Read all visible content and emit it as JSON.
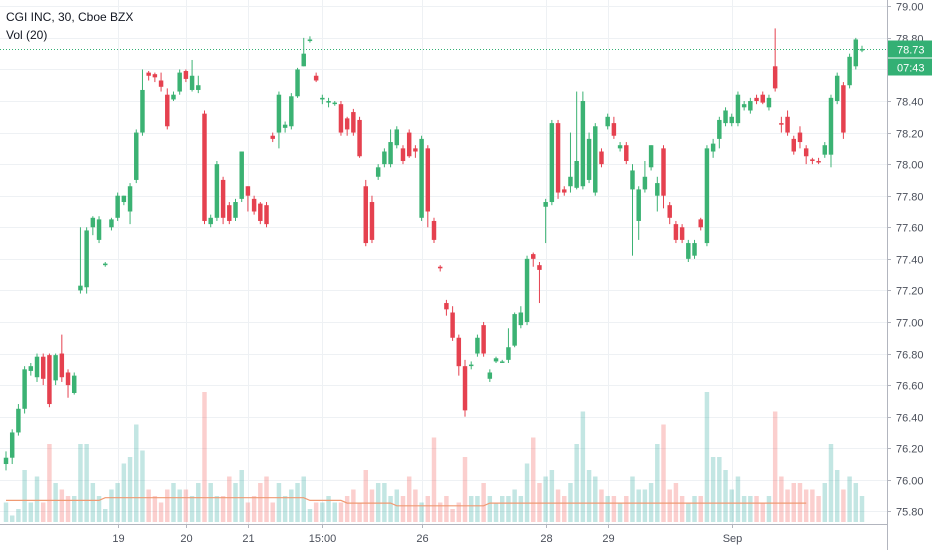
{
  "header": {
    "symbol_line": "CGI INC, 30, Cboe BZX",
    "volume_line": "Vol (20)"
  },
  "price_badges": {
    "last_price": "78.73",
    "countdown": "07:43"
  },
  "colors": {
    "up": "#26a69a",
    "down": "#ef5350",
    "up_candle": "#3bb273",
    "down_candle": "#e5414f",
    "volume_ma": "#f09a73",
    "badge": "#33b074",
    "grid": "#eef1f4"
  },
  "chart_data": {
    "type": "candlestick",
    "ylim": [
      75.72,
      79.04
    ],
    "y_ticks": [
      "79.00",
      "78.80",
      "78.60",
      "78.40",
      "78.20",
      "78.00",
      "77.80",
      "77.60",
      "77.40",
      "77.20",
      "77.00",
      "76.80",
      "76.60",
      "76.40",
      "76.20",
      "76.00",
      "75.80"
    ],
    "x_tick_labels": [
      "19",
      "20",
      "21",
      "15:00",
      "26",
      "28",
      "29",
      "Sep"
    ],
    "x_tick_bars": [
      18,
      29,
      39,
      51,
      67,
      87,
      97,
      117
    ],
    "last_price": 78.73,
    "bars": [
      [
        76.14,
        76.1,
        76.18,
        76.06,
        "u",
        3
      ],
      [
        76.3,
        76.14,
        76.32,
        76.1,
        "u",
        1
      ],
      [
        76.45,
        76.3,
        76.48,
        76.28,
        "u",
        2
      ],
      [
        76.7,
        76.45,
        76.72,
        76.42,
        "u",
        8
      ],
      [
        76.72,
        76.69,
        76.74,
        76.66,
        "u",
        3
      ],
      [
        76.78,
        76.65,
        76.8,
        76.62,
        "u",
        7
      ],
      [
        76.64,
        76.78,
        76.8,
        76.6,
        "d",
        3
      ],
      [
        76.48,
        76.79,
        76.8,
        76.46,
        "d",
        12
      ],
      [
        76.79,
        76.63,
        76.8,
        76.6,
        "u",
        6
      ],
      [
        76.8,
        76.65,
        76.92,
        76.62,
        "d",
        5
      ],
      [
        76.6,
        76.68,
        76.7,
        76.52,
        "d",
        4
      ],
      [
        76.66,
        76.55,
        76.68,
        76.54,
        "u",
        4
      ],
      [
        77.23,
        77.2,
        77.6,
        77.18,
        "u",
        12
      ],
      [
        77.58,
        77.22,
        77.6,
        77.18,
        "u",
        12
      ],
      [
        77.66,
        77.6,
        77.67,
        77.55,
        "u",
        6
      ],
      [
        77.52,
        77.65,
        77.67,
        77.5,
        "u",
        4
      ],
      [
        77.37,
        77.36,
        77.38,
        77.35,
        "u",
        2
      ],
      [
        77.65,
        77.6,
        77.66,
        77.58,
        "u",
        5
      ],
      [
        77.8,
        77.66,
        77.82,
        77.64,
        "u",
        6
      ],
      [
        77.8,
        77.76,
        77.8,
        77.74,
        "u",
        9
      ],
      [
        77.86,
        77.7,
        77.88,
        77.62,
        "u",
        10
      ],
      [
        78.2,
        77.9,
        78.22,
        77.88,
        "u",
        15
      ],
      [
        78.47,
        78.2,
        78.6,
        78.18,
        "u",
        11
      ],
      [
        78.56,
        78.58,
        78.59,
        78.53,
        "d",
        5
      ],
      [
        78.55,
        78.57,
        78.58,
        78.52,
        "d",
        4
      ],
      [
        78.53,
        78.49,
        78.58,
        78.46,
        "d",
        3
      ],
      [
        78.44,
        78.24,
        78.48,
        78.22,
        "d",
        5
      ],
      [
        78.44,
        78.41,
        78.46,
        78.4,
        "u",
        6
      ],
      [
        78.58,
        78.46,
        78.6,
        78.44,
        "u",
        5
      ],
      [
        78.54,
        78.59,
        78.6,
        78.52,
        "d",
        5
      ],
      [
        78.47,
        78.56,
        78.66,
        78.46,
        "u",
        4
      ],
      [
        78.5,
        78.47,
        78.56,
        78.45,
        "u",
        6
      ],
      [
        78.32,
        77.64,
        78.34,
        77.62,
        "d",
        20
      ],
      [
        77.66,
        77.62,
        77.68,
        77.6,
        "u",
        6
      ],
      [
        78.0,
        77.66,
        78.02,
        77.64,
        "u",
        4
      ],
      [
        77.9,
        77.66,
        77.92,
        77.62,
        "d",
        4
      ],
      [
        77.64,
        77.74,
        77.76,
        77.62,
        "d",
        7
      ],
      [
        77.76,
        77.66,
        77.78,
        77.64,
        "u",
        6
      ],
      [
        78.08,
        77.78,
        78.08,
        77.76,
        "u",
        8
      ],
      [
        77.86,
        77.8,
        77.86,
        77.7,
        "d",
        3
      ],
      [
        77.78,
        77.7,
        77.8,
        77.68,
        "d",
        4
      ],
      [
        77.75,
        77.64,
        77.76,
        77.62,
        "d",
        6
      ],
      [
        77.74,
        77.62,
        77.76,
        77.6,
        "d",
        7
      ],
      [
        78.18,
        78.16,
        78.2,
        78.14,
        "d",
        3
      ],
      [
        78.44,
        78.2,
        78.46,
        78.1,
        "u",
        6
      ],
      [
        78.25,
        78.23,
        78.27,
        78.2,
        "u",
        4
      ],
      [
        78.43,
        78.24,
        78.45,
        78.22,
        "u",
        5
      ],
      [
        78.6,
        78.43,
        78.61,
        78.42,
        "u",
        6
      ],
      [
        78.7,
        78.62,
        78.8,
        78.62,
        "u",
        7
      ],
      [
        78.79,
        78.78,
        78.81,
        78.77,
        "u",
        2
      ],
      [
        78.53,
        78.56,
        78.58,
        78.52,
        "d",
        3
      ],
      [
        78.42,
        78.41,
        78.44,
        78.38,
        "u",
        3
      ],
      [
        78.4,
        78.39,
        78.42,
        78.36,
        "u",
        4
      ],
      [
        78.39,
        78.39,
        78.4,
        78.37,
        "u",
        3
      ],
      [
        78.38,
        78.2,
        78.4,
        78.18,
        "d",
        3
      ],
      [
        78.29,
        78.22,
        78.3,
        78.18,
        "d",
        4
      ],
      [
        78.33,
        78.2,
        78.35,
        78.18,
        "d",
        5
      ],
      [
        78.28,
        78.05,
        78.3,
        78.04,
        "d",
        3
      ],
      [
        77.86,
        77.5,
        77.9,
        77.48,
        "d",
        8
      ],
      [
        77.76,
        77.52,
        77.8,
        77.5,
        "d",
        5
      ],
      [
        77.98,
        77.92,
        78.0,
        77.9,
        "u",
        6
      ],
      [
        78.08,
        78.0,
        78.1,
        77.98,
        "u",
        6
      ],
      [
        78.14,
        78.0,
        78.22,
        77.98,
        "u",
        4
      ],
      [
        78.22,
        78.12,
        78.24,
        78.1,
        "u",
        5
      ],
      [
        78.1,
        78.02,
        78.12,
        78.0,
        "d",
        4
      ],
      [
        78.2,
        78.05,
        78.22,
        78.04,
        "d",
        7
      ],
      [
        78.08,
        78.1,
        78.12,
        78.04,
        "d",
        5
      ],
      [
        78.16,
        77.66,
        78.18,
        77.64,
        "u",
        3
      ],
      [
        78.1,
        77.7,
        78.12,
        77.6,
        "d",
        4
      ],
      [
        77.64,
        77.52,
        77.66,
        77.5,
        "d",
        13
      ],
      [
        77.34,
        77.35,
        77.36,
        77.32,
        "d",
        3
      ],
      [
        77.08,
        77.12,
        77.14,
        77.04,
        "d",
        4
      ],
      [
        77.06,
        76.9,
        77.1,
        76.88,
        "d",
        2
      ],
      [
        76.9,
        76.72,
        76.92,
        76.66,
        "d",
        3
      ],
      [
        76.72,
        76.44,
        76.76,
        76.4,
        "d",
        10
      ],
      [
        76.73,
        76.73,
        76.75,
        76.7,
        "u",
        4
      ],
      [
        76.9,
        76.8,
        76.92,
        76.78,
        "u",
        4
      ],
      [
        76.98,
        76.8,
        77.0,
        76.78,
        "d",
        6
      ],
      [
        76.68,
        76.64,
        76.7,
        76.62,
        "u",
        4
      ],
      [
        76.77,
        76.75,
        76.78,
        76.74,
        "u",
        3
      ],
      [
        76.75,
        76.75,
        76.76,
        76.74,
        "u",
        4
      ],
      [
        76.84,
        76.76,
        76.96,
        76.74,
        "u",
        4
      ],
      [
        77.05,
        76.85,
        77.06,
        76.84,
        "u",
        5
      ],
      [
        77.06,
        76.98,
        77.1,
        76.96,
        "u",
        4
      ],
      [
        77.4,
        77.0,
        77.42,
        76.98,
        "u",
        9
      ],
      [
        77.43,
        77.4,
        77.44,
        77.35,
        "d",
        13
      ],
      [
        77.36,
        77.33,
        77.38,
        77.12,
        "d",
        6
      ],
      [
        77.76,
        77.73,
        77.78,
        77.5,
        "u",
        7
      ],
      [
        78.26,
        77.76,
        78.28,
        77.74,
        "u",
        8
      ],
      [
        78.26,
        77.82,
        78.28,
        77.78,
        "d",
        5
      ],
      [
        77.84,
        77.82,
        77.86,
        77.8,
        "d",
        4
      ],
      [
        77.92,
        77.86,
        78.2,
        77.82,
        "u",
        6
      ],
      [
        78.02,
        77.85,
        78.46,
        77.84,
        "u",
        12
      ],
      [
        78.4,
        77.86,
        78.46,
        77.84,
        "u",
        17
      ],
      [
        78.16,
        77.9,
        78.2,
        77.88,
        "u",
        8
      ],
      [
        78.24,
        77.82,
        78.26,
        77.8,
        "u",
        7
      ],
      [
        78.08,
        78.0,
        78.1,
        77.98,
        "d",
        5
      ],
      [
        78.3,
        78.24,
        78.32,
        78.22,
        "u",
        4
      ],
      [
        78.26,
        78.18,
        78.3,
        78.16,
        "d",
        4
      ],
      [
        78.12,
        78.1,
        78.14,
        78.08,
        "u",
        3
      ],
      [
        78.12,
        78.02,
        78.14,
        78.0,
        "d",
        4
      ],
      [
        77.96,
        77.84,
        78.0,
        77.42,
        "u",
        7
      ],
      [
        77.84,
        77.64,
        77.86,
        77.52,
        "u",
        5
      ],
      [
        77.92,
        77.84,
        78.02,
        77.82,
        "u",
        5
      ],
      [
        78.12,
        77.98,
        78.12,
        77.96,
        "u",
        6
      ],
      [
        77.88,
        77.8,
        77.92,
        77.7,
        "u",
        12
      ],
      [
        78.1,
        77.8,
        78.12,
        77.72,
        "d",
        15
      ],
      [
        77.74,
        77.66,
        77.76,
        77.62,
        "d",
        5
      ],
      [
        77.62,
        77.52,
        77.64,
        77.5,
        "d",
        6
      ],
      [
        77.6,
        77.52,
        77.62,
        77.5,
        "d",
        4
      ],
      [
        77.5,
        77.4,
        77.52,
        77.38,
        "u",
        3
      ],
      [
        77.42,
        77.5,
        77.52,
        77.4,
        "u",
        4
      ],
      [
        77.6,
        77.65,
        77.66,
        77.58,
        "d",
        4
      ],
      [
        78.1,
        77.5,
        78.12,
        77.48,
        "u",
        20
      ],
      [
        78.13,
        78.08,
        78.16,
        78.04,
        "u",
        10
      ],
      [
        78.28,
        78.16,
        78.3,
        78.1,
        "u",
        10
      ],
      [
        78.34,
        78.26,
        78.36,
        78.24,
        "u",
        8
      ],
      [
        78.3,
        78.26,
        78.32,
        78.24,
        "u",
        5
      ],
      [
        78.44,
        78.26,
        78.46,
        78.24,
        "u",
        7
      ],
      [
        78.38,
        78.36,
        78.4,
        78.34,
        "u",
        4
      ],
      [
        78.34,
        78.4,
        78.42,
        78.32,
        "u",
        4
      ],
      [
        78.42,
        78.4,
        78.44,
        78.38,
        "d",
        4
      ],
      [
        78.39,
        78.44,
        78.46,
        78.38,
        "d",
        3
      ],
      [
        78.42,
        78.36,
        78.44,
        78.34,
        "u",
        4
      ],
      [
        78.48,
        78.62,
        78.86,
        78.46,
        "d",
        17
      ],
      [
        78.25,
        78.26,
        78.3,
        78.2,
        "d",
        7
      ],
      [
        78.3,
        78.2,
        78.34,
        78.18,
        "d",
        5
      ],
      [
        78.16,
        78.08,
        78.18,
        78.06,
        "d",
        6
      ],
      [
        78.2,
        78.14,
        78.24,
        78.1,
        "d",
        6
      ],
      [
        78.1,
        78.05,
        78.12,
        78.0,
        "d",
        5
      ],
      [
        78.03,
        78.02,
        78.04,
        78.0,
        "d",
        5
      ],
      [
        78.02,
        78.02,
        78.04,
        78.0,
        "d",
        4
      ],
      [
        78.12,
        78.06,
        78.14,
        78.04,
        "u",
        6
      ],
      [
        78.42,
        78.06,
        78.44,
        77.98,
        "u",
        12
      ],
      [
        78.56,
        78.4,
        78.58,
        78.38,
        "u",
        8
      ],
      [
        78.5,
        78.2,
        78.52,
        78.16,
        "d",
        5
      ],
      [
        78.68,
        78.5,
        78.7,
        78.48,
        "u",
        7
      ],
      [
        78.79,
        78.62,
        78.8,
        78.6,
        "u",
        6
      ],
      [
        78.73,
        78.72,
        78.75,
        78.71,
        "u",
        4
      ]
    ],
    "volume_ma": [
      8,
      8,
      8,
      8,
      8,
      8,
      8,
      8,
      8,
      8,
      8,
      8,
      8,
      8,
      8,
      8,
      9,
      9,
      9,
      9,
      9,
      9,
      9,
      9,
      9,
      9,
      9,
      9,
      9,
      9,
      9,
      9,
      9,
      9,
      9,
      9,
      9,
      9,
      9,
      9,
      9,
      9,
      9,
      9,
      9,
      9,
      9,
      9,
      9,
      8,
      8,
      8,
      8,
      8,
      8,
      7,
      7,
      7,
      7,
      7,
      7,
      7,
      7,
      6,
      6,
      6,
      6,
      6,
      6,
      6,
      6,
      6,
      6,
      6,
      6,
      6,
      6,
      6,
      7,
      7,
      7,
      7,
      7,
      7,
      7,
      7,
      7,
      7,
      7,
      7,
      7,
      7,
      7,
      7,
      7,
      7,
      7,
      7,
      7,
      7,
      7,
      7,
      7,
      7,
      7,
      7,
      7,
      7,
      7,
      7,
      7,
      7,
      7,
      7,
      7,
      7,
      7,
      7,
      7,
      7,
      7,
      7,
      7,
      7,
      7,
      7,
      7,
      7,
      7,
      7
    ]
  }
}
